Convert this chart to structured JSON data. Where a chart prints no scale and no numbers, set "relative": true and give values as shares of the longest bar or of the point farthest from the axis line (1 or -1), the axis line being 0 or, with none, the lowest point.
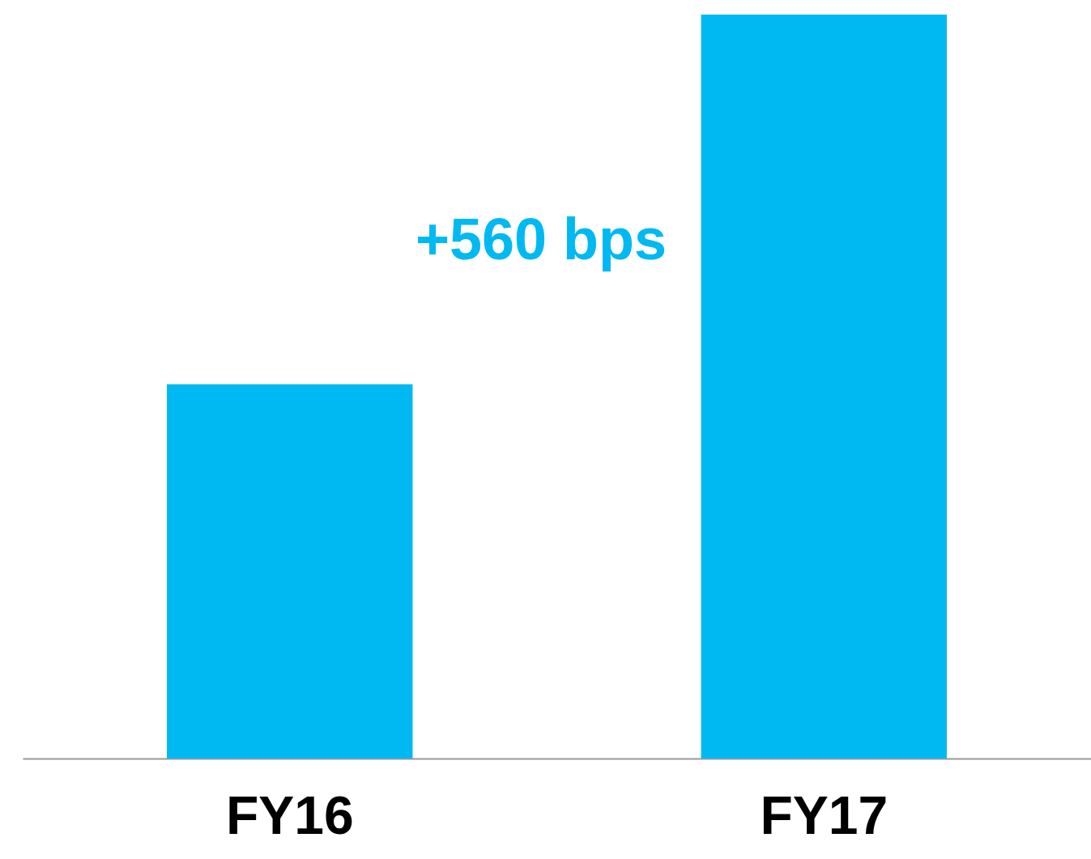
{
  "chart_data": {
    "type": "bar",
    "relative": true,
    "categories": [
      "FY16",
      "FY17"
    ],
    "values": [
      0.503,
      1
    ],
    "color": "#00b9f2",
    "annotations": [
      "+560 bps"
    ]
  }
}
